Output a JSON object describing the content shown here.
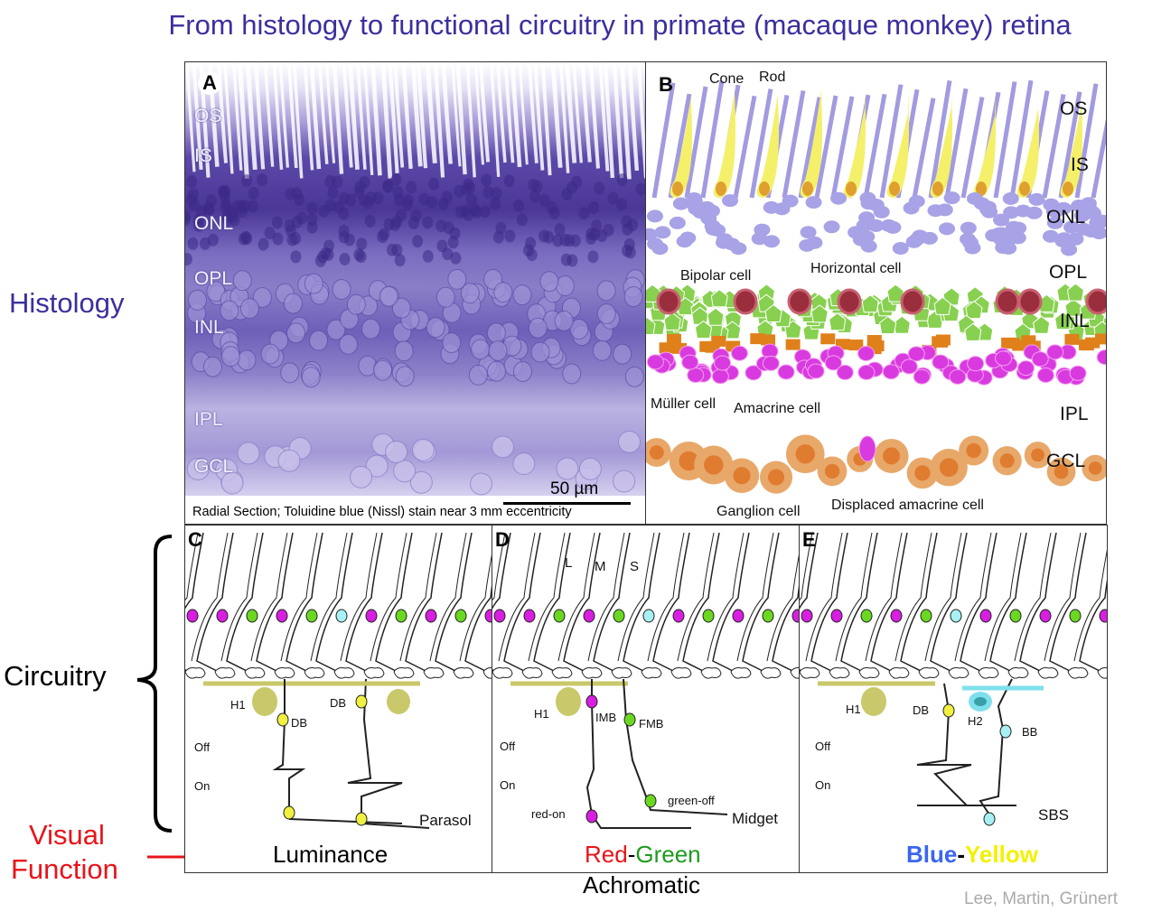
{
  "title": "From histology to functional circuitry in primate (macaque monkey) retina",
  "side_labels": {
    "histology": "Histology",
    "circuitry": "Circuitry",
    "visual_function_1": "Visual",
    "visual_function_2": "Function"
  },
  "panel_a": {
    "letter": "A",
    "layers": [
      "OS",
      "IS",
      "ONL",
      "OPL",
      "INL",
      "IPL",
      "GCL"
    ],
    "scale_bar": "50 µm",
    "caption": "Radial Section; Toluidine blue (Nissl) stain near 3 mm eccentricity"
  },
  "panel_b": {
    "letter": "B",
    "layers": [
      "OS",
      "IS",
      "ONL",
      "OPL",
      "INL",
      "IPL",
      "GCL"
    ],
    "annotations": {
      "cone": "Cone",
      "rod": "Rod",
      "bipolar": "Bipolar cell",
      "horizontal": "Horizontal cell",
      "muller": "Müller cell",
      "amacrine": "Amacrine cell",
      "ganglion": "Ganglion cell",
      "displaced": "Displaced amacrine cell"
    }
  },
  "panel_c": {
    "letter": "C",
    "h1": "H1",
    "db1": "DB",
    "db2": "DB",
    "off": "Off",
    "on": "On",
    "type": "Parasol",
    "function": "Luminance"
  },
  "panel_d": {
    "letter": "D",
    "l": "L",
    "m": "M",
    "s": "S",
    "h1": "H1",
    "imb": "IMB",
    "fmb": "FMB",
    "off": "Off",
    "on": "On",
    "red_on": "red-on",
    "green_off": "green-off",
    "type": "Midget",
    "function_red": "Red",
    "function_dash": "-",
    "function_green": "Green",
    "below": "Achromatic"
  },
  "panel_e": {
    "letter": "E",
    "h1": "H1",
    "db": "DB",
    "h2": "H2",
    "bb": "BB",
    "off": "Off",
    "on": "On",
    "type": "SBS",
    "function_blue": "Blue",
    "function_dash": "-",
    "function_yellow": "Yellow"
  },
  "credit": "Lee, Martin, Grünert",
  "colors": {
    "title": "#3b2f9e",
    "red": "#e8141a",
    "green": "#1e9a1e",
    "blue": "#3a66f0",
    "yellow": "#f2f200",
    "h1": "#c9c86a",
    "h2": "#7fe0ec"
  }
}
